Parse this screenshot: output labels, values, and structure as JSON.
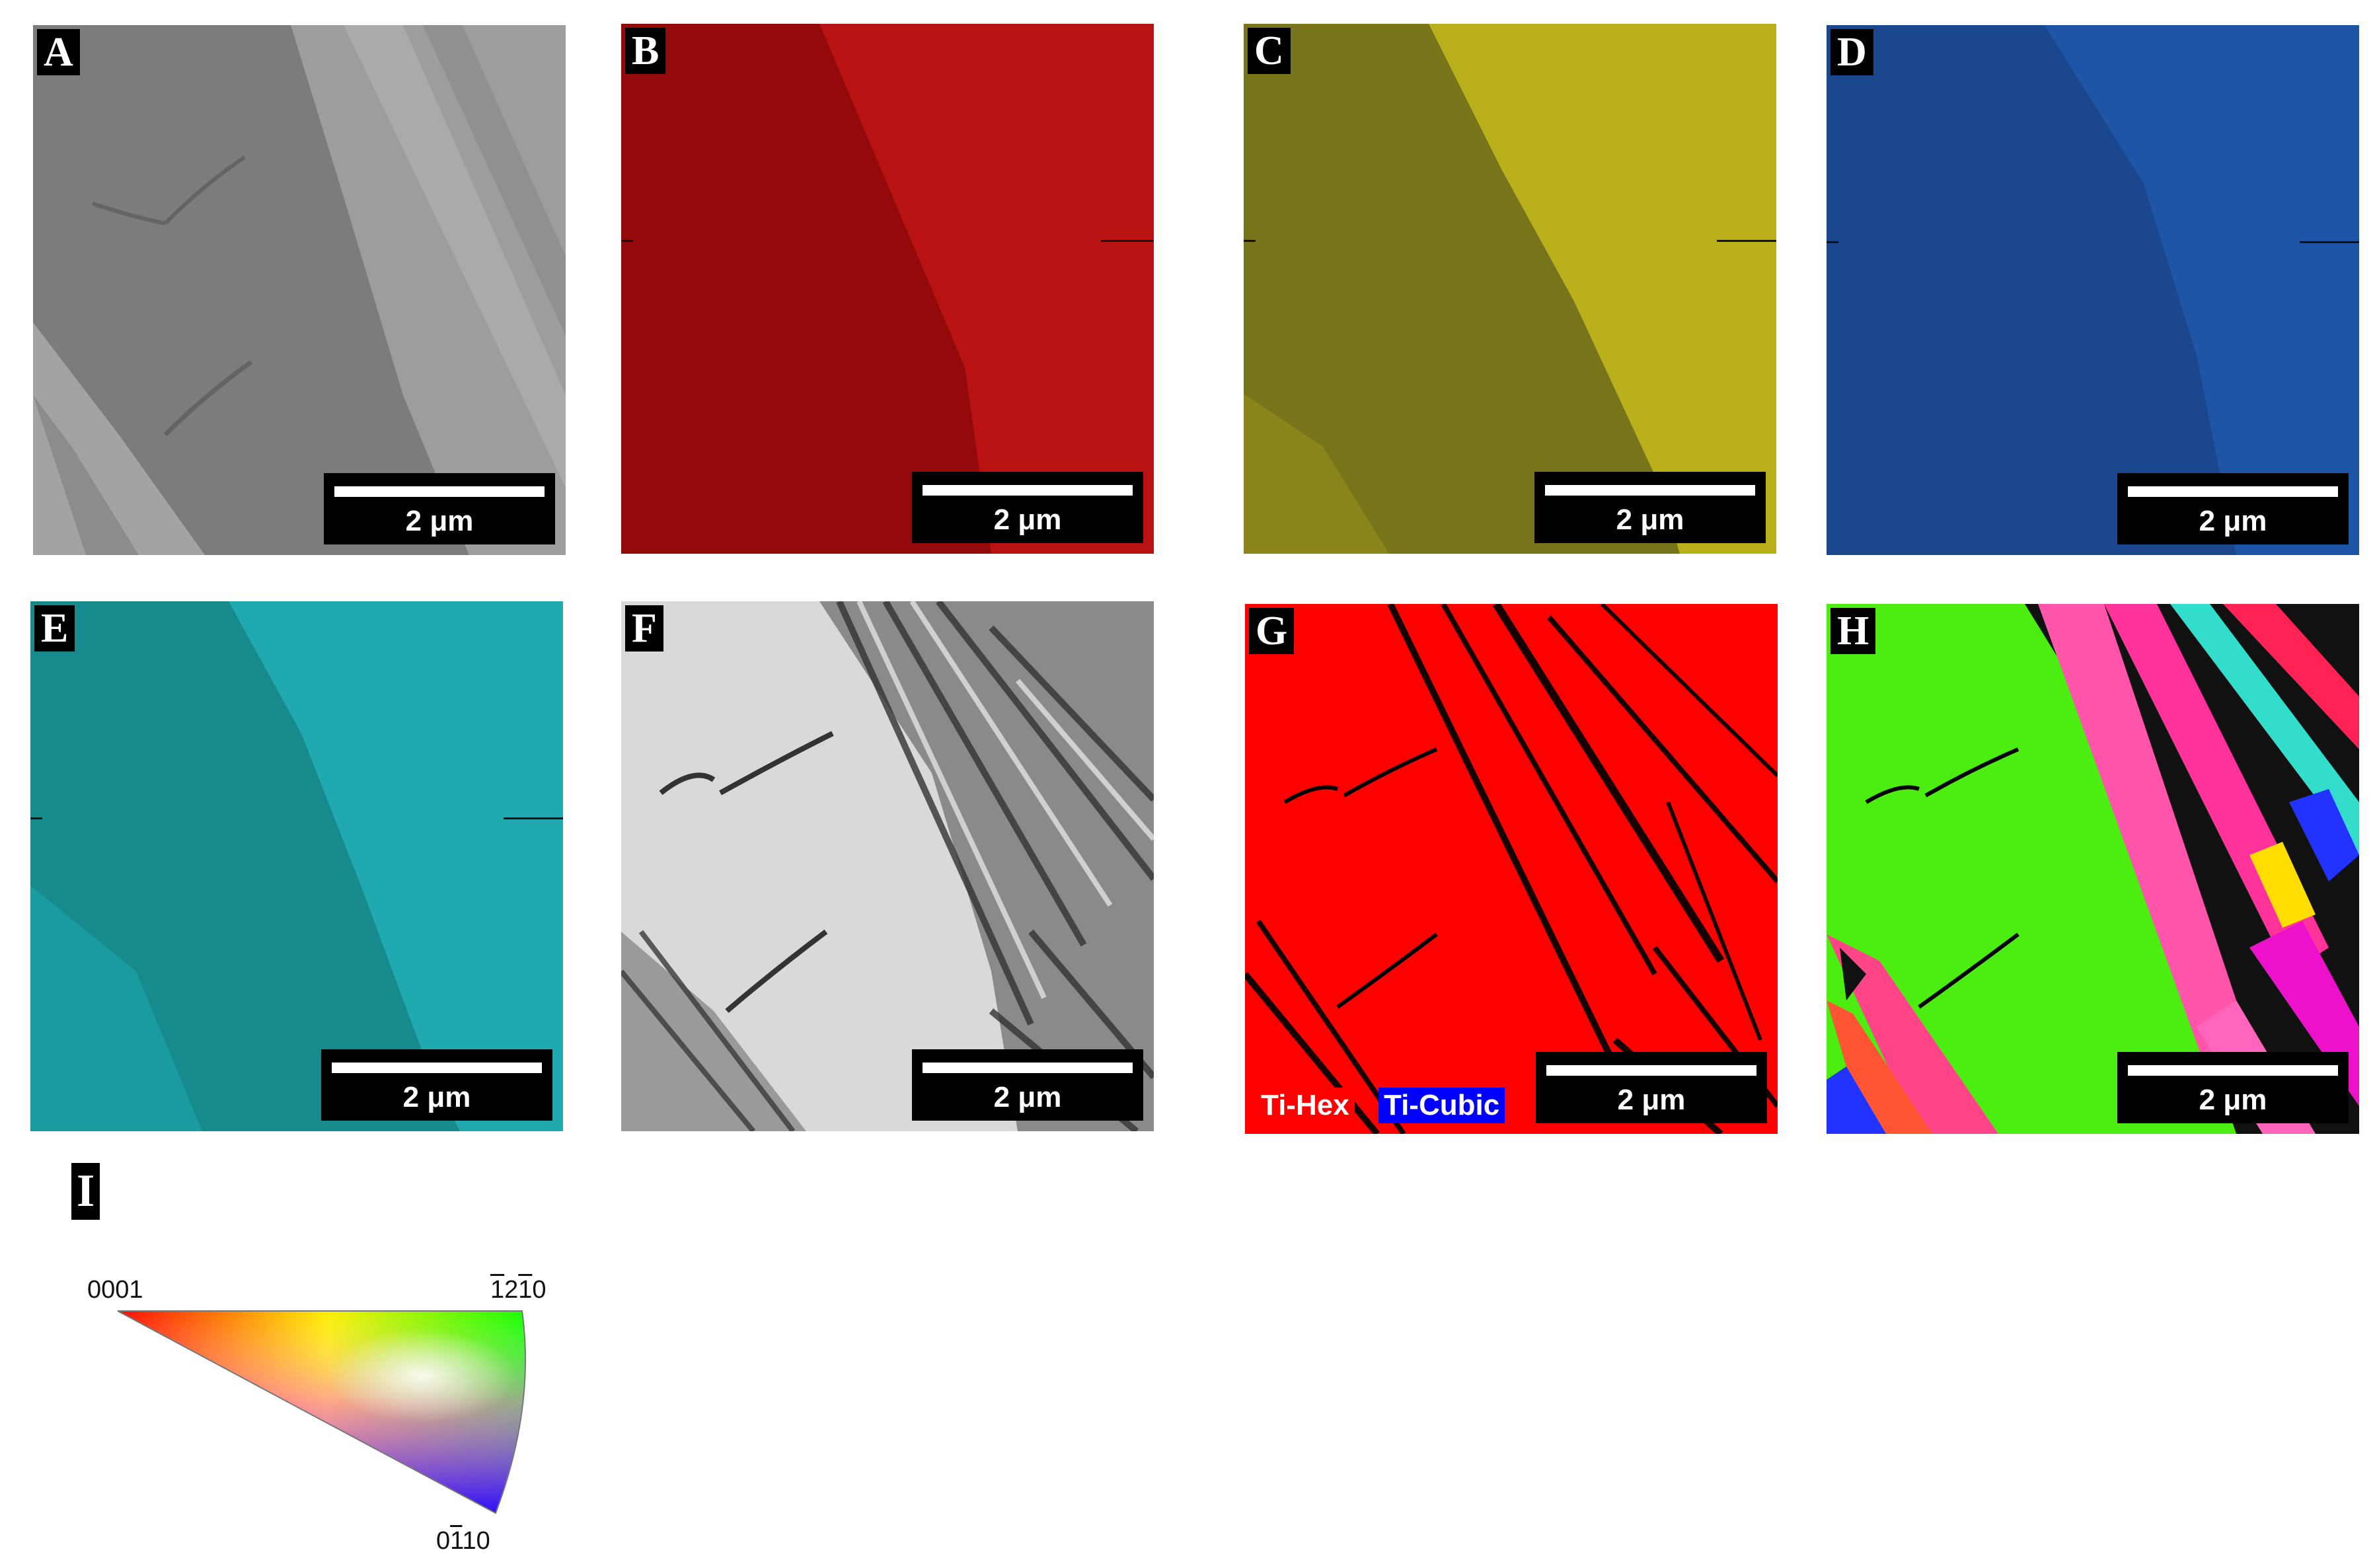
{
  "panels": [
    {
      "letter": "A",
      "scale": "2 μm",
      "fill": "#7e7e7e"
    },
    {
      "letter": "B",
      "scale": "2 μm",
      "fill": "#9a0b0b"
    },
    {
      "letter": "C",
      "scale": "2 μm",
      "fill": "#7d7a12"
    },
    {
      "letter": "D",
      "scale": "2 μm",
      "fill": "#1f4f9a"
    },
    {
      "letter": "E",
      "scale": "2 μm",
      "fill": "#1b9a9c"
    },
    {
      "letter": "F",
      "scale": "2 μm",
      "fill": "#dcdcdc"
    },
    {
      "letter": "G",
      "scale": "2 μm",
      "fill": "#ff0000"
    },
    {
      "letter": "H",
      "scale": "2 μm",
      "fill": "#4dee12"
    }
  ],
  "phase_legend": {
    "hex": {
      "label": "Ti-Hex",
      "color": "#ff0000"
    },
    "cubic": {
      "label": "Ti-Cubic",
      "color": "#0000ff"
    }
  },
  "ipf_key": {
    "letter": "I",
    "corner_0001": "0001",
    "corner_1210": {
      "m1": "1",
      "a": "2",
      "m2": "1",
      "b": "0"
    },
    "corner_0110": {
      "a": "0",
      "m1": "1",
      "b": "10"
    }
  }
}
